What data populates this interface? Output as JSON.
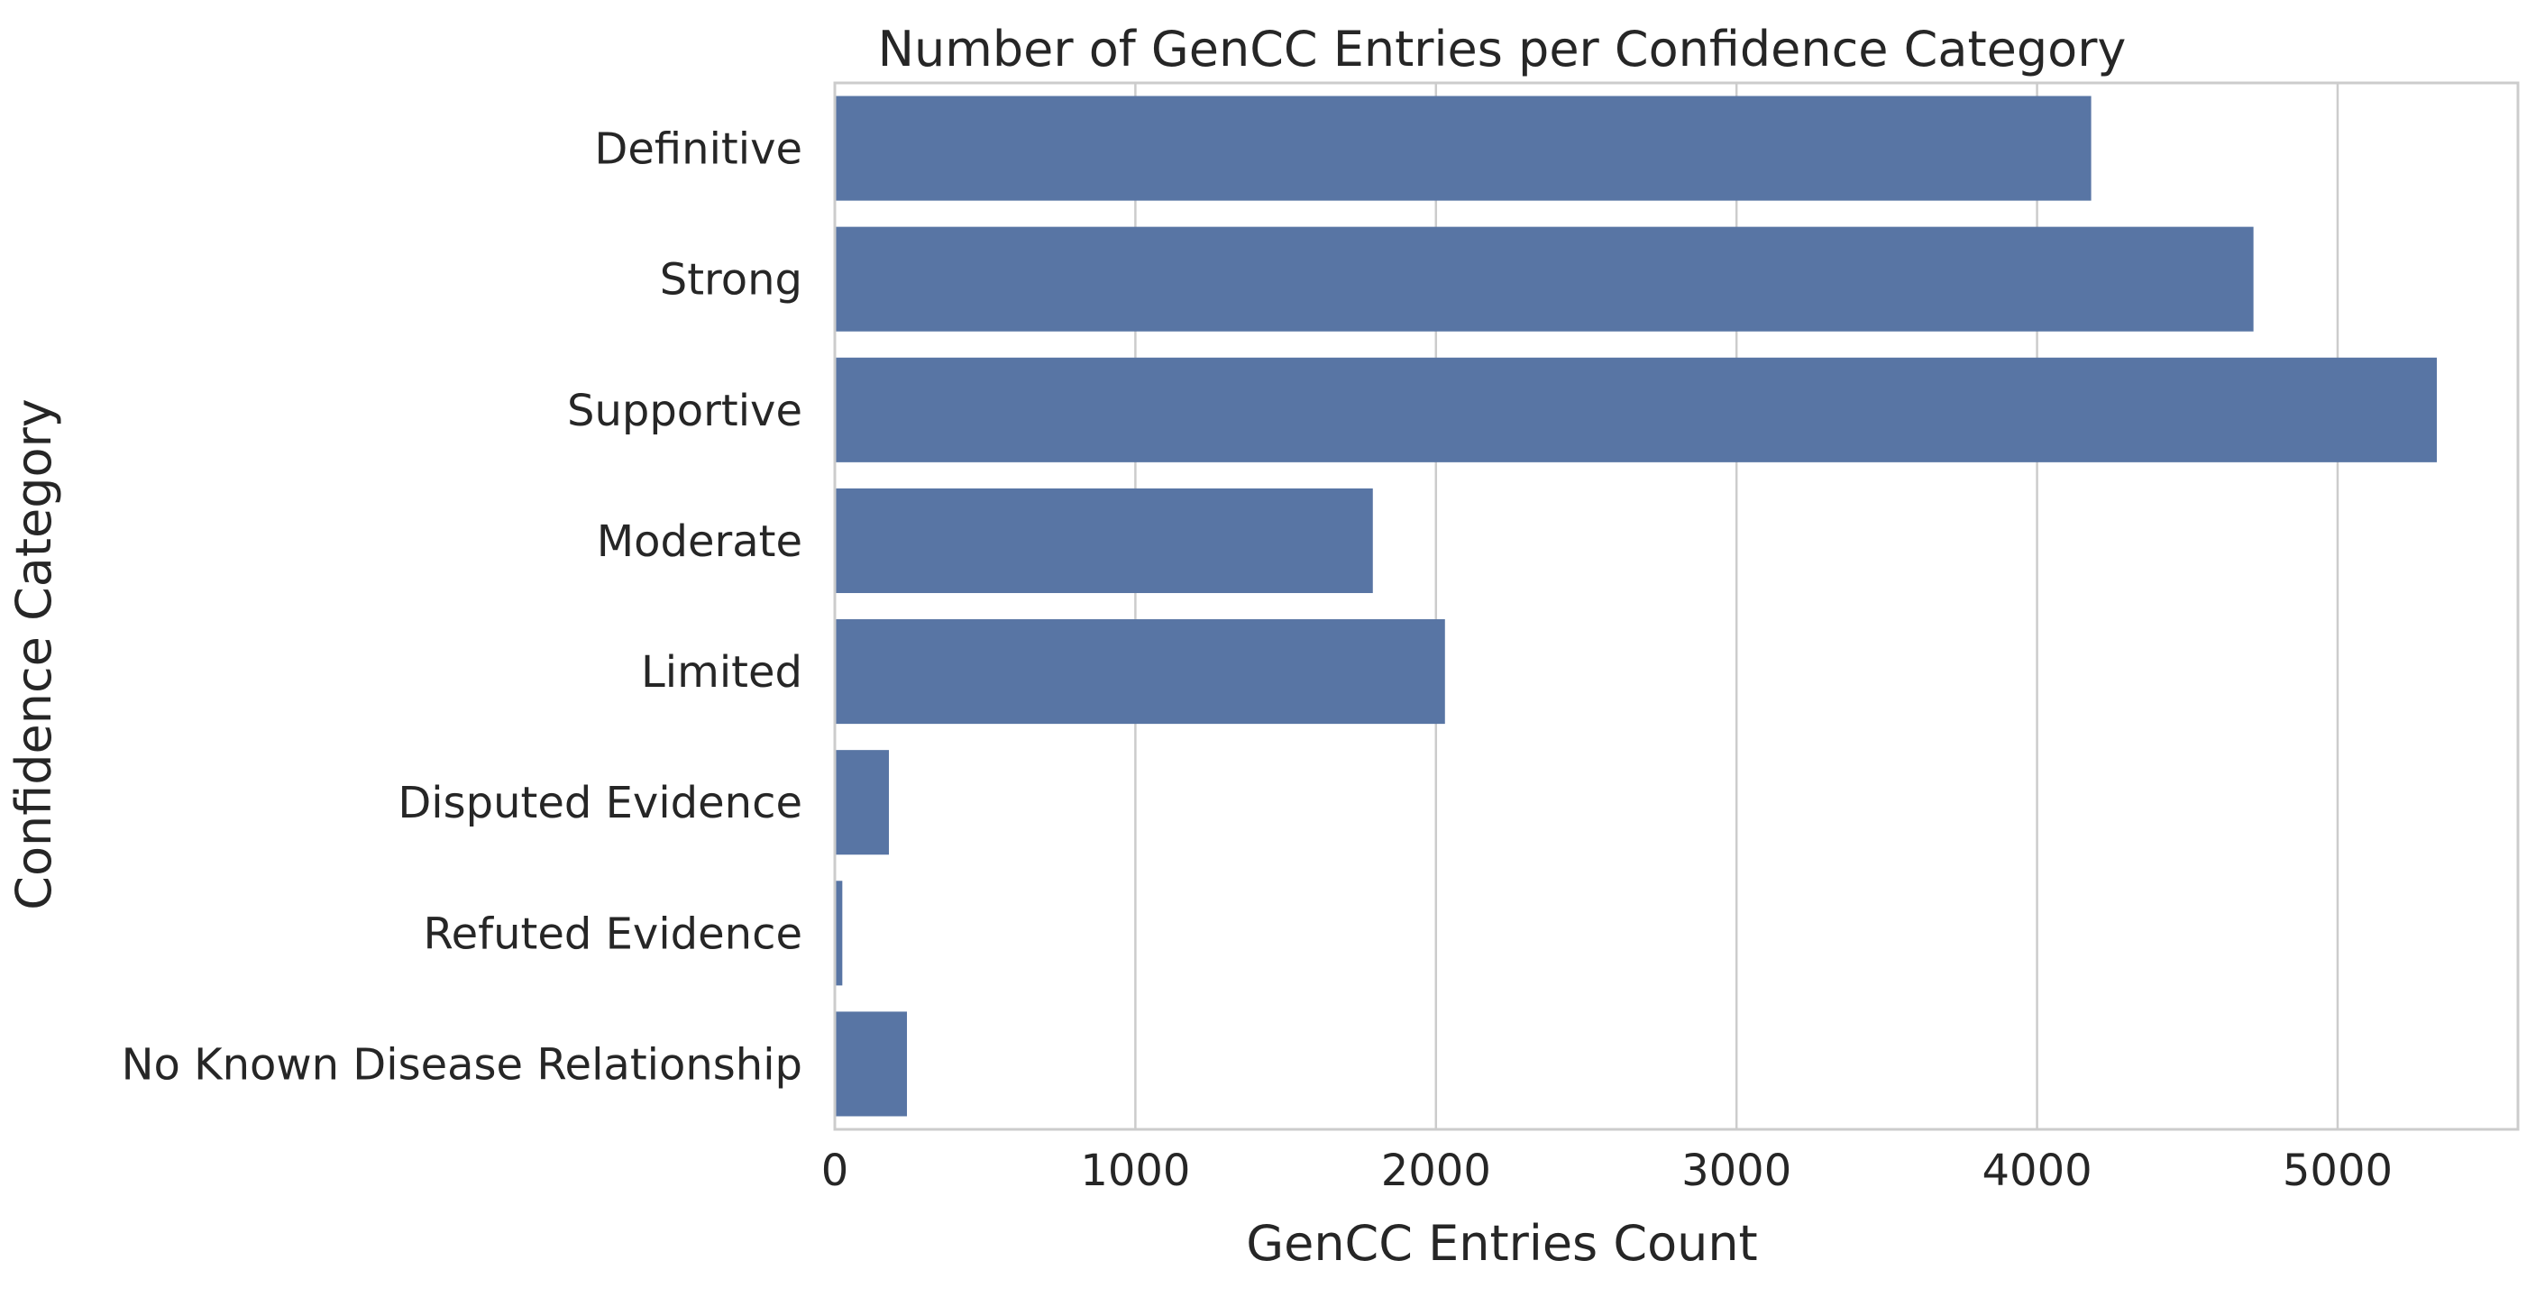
{
  "chart_data": {
    "type": "bar",
    "orientation": "horizontal",
    "title": "Number of GenCC Entries per Confidence Category",
    "xlabel": "GenCC Entries Count",
    "ylabel": "Confidence Category",
    "categories": [
      "Definitive",
      "Strong",
      "Supportive",
      "Moderate",
      "Limited",
      "Disputed Evidence",
      "Refuted Evidence",
      "No Known Disease Relationship"
    ],
    "values": [
      4180,
      4720,
      5330,
      1790,
      2030,
      180,
      25,
      240
    ],
    "xlim": [
      0,
      5600
    ],
    "xticks": [
      0,
      1000,
      2000,
      3000,
      4000,
      5000
    ],
    "xtick_labels": [
      "0",
      "1000",
      "2000",
      "3000",
      "4000",
      "5000"
    ],
    "grid": "x",
    "bar_color": "#5875a4"
  }
}
